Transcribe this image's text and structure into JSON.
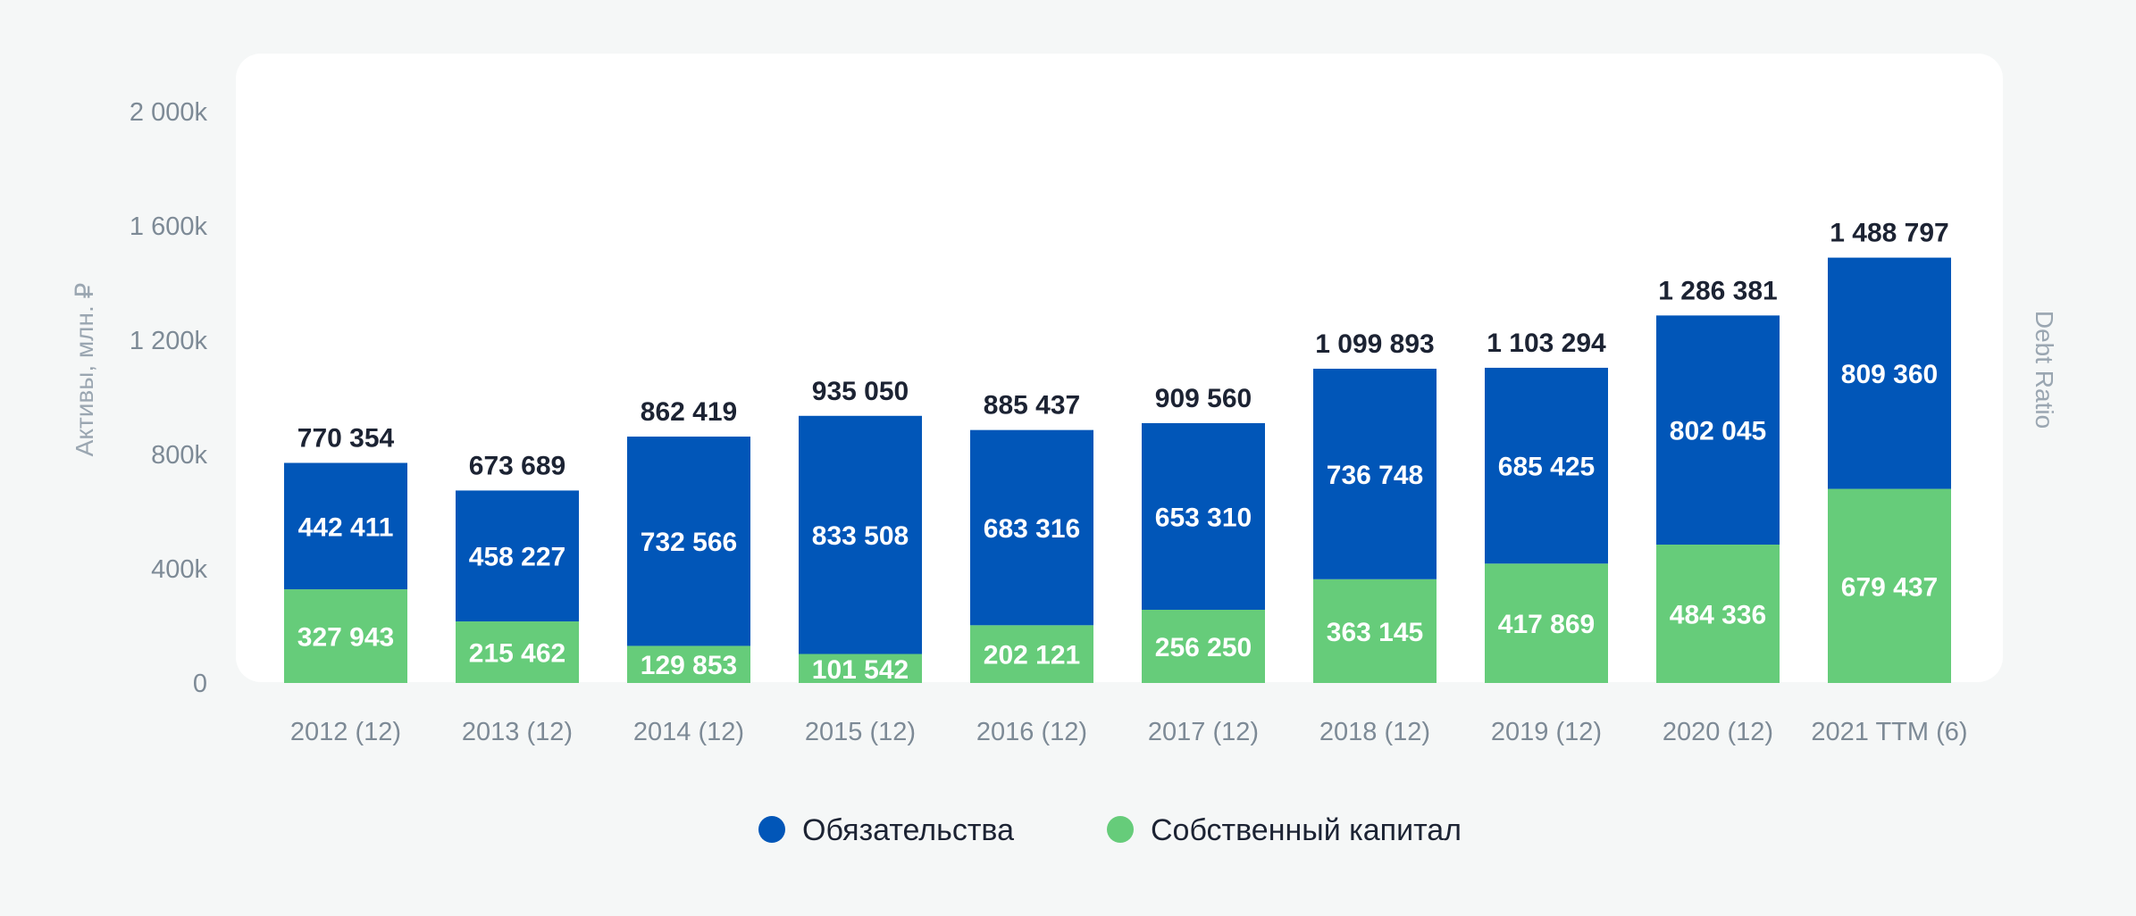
{
  "chart_data": {
    "type": "bar",
    "stacked": true,
    "categories": [
      "2012 (12)",
      "2013 (12)",
      "2014 (12)",
      "2015 (12)",
      "2016 (12)",
      "2017 (12)",
      "2018 (12)",
      "2019 (12)",
      "2020 (12)",
      "2021 TTM (6)"
    ],
    "series": [
      {
        "name": "Собственный капитал",
        "color": "#66cc7a",
        "values": [
          327943,
          215462,
          129853,
          101542,
          202121,
          256250,
          363145,
          417869,
          484336,
          679437
        ],
        "labels": [
          "327 943",
          "215 462",
          "129 853",
          "101 542",
          "202 121",
          "256 250",
          "363 145",
          "417 869",
          "484 336",
          "679 437"
        ]
      },
      {
        "name": "Обязательства",
        "color": "#0156b8",
        "values": [
          442411,
          458227,
          732566,
          833508,
          683316,
          653310,
          736748,
          685425,
          802045,
          809360
        ],
        "labels": [
          "442 411",
          "458 227",
          "732 566",
          "833 508",
          "683 316",
          "653 310",
          "736 748",
          "685 425",
          "802 045",
          "809 360"
        ]
      }
    ],
    "totals": [
      770354,
      673689,
      862419,
      935050,
      885437,
      909560,
      1099893,
      1103294,
      1286381,
      1488797
    ],
    "total_labels": [
      "770 354",
      "673 689",
      "862 419",
      "935 050",
      "885 437",
      "909 560",
      "1 099 893",
      "1 103 294",
      "1 286 381",
      "1 488 797"
    ],
    "ylim": [
      0,
      2000000
    ],
    "yticks": [
      0,
      400000,
      800000,
      1200000,
      1600000,
      2000000
    ],
    "ytick_labels": [
      "0",
      "400k",
      "800k",
      "1 200k",
      "1 600k",
      "2 000k"
    ],
    "ylabel": "Активы, млн. ₽",
    "y2label": "Debt Ratio",
    "grid": false,
    "legend_position": "bottom-center",
    "legend": [
      {
        "name": "Обязательства",
        "color": "#0156b8"
      },
      {
        "name": "Собственный капитал",
        "color": "#66cc7a"
      }
    ]
  }
}
